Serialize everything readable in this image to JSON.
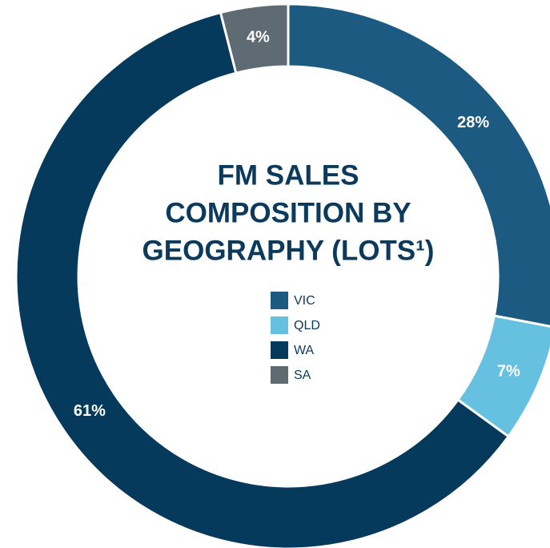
{
  "chart_data": {
    "type": "donut",
    "title": [
      "FM SALES",
      "COMPOSITION BY",
      "GEOGRAPHY (LOTS¹)"
    ],
    "categories": [
      "VIC",
      "QLD",
      "WA",
      "SA"
    ],
    "values": [
      28,
      7,
      61,
      4
    ],
    "value_labels": [
      "28%",
      "7%",
      "61%",
      "4%"
    ],
    "colors": [
      "#1d5a82",
      "#66c1e0",
      "#053a5c",
      "#5e6b73"
    ]
  }
}
